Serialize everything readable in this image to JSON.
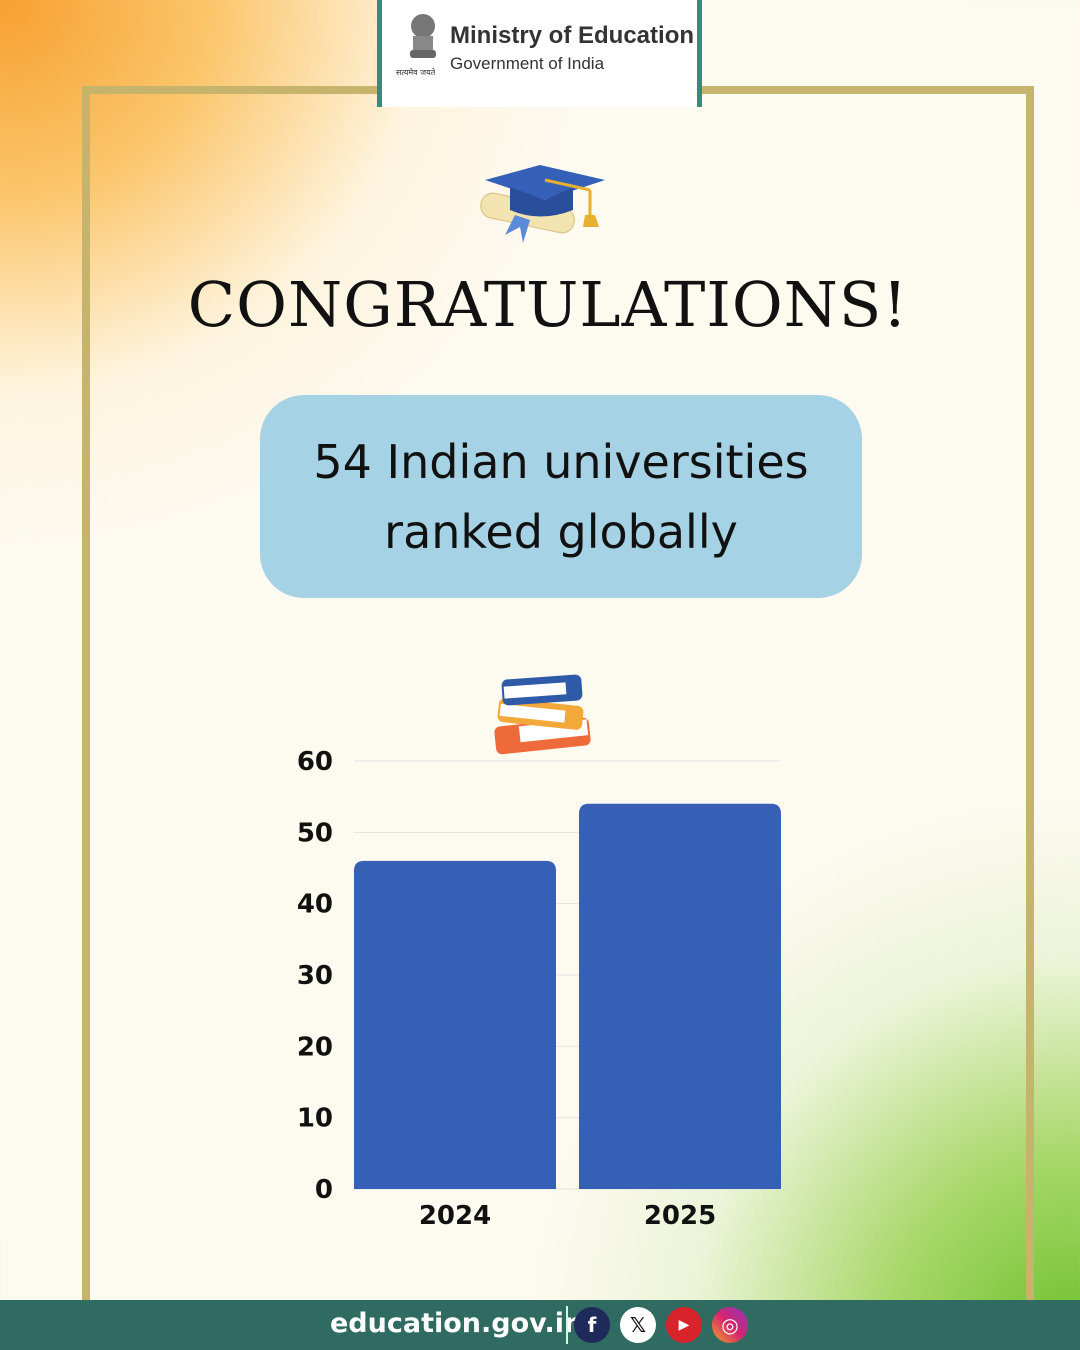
{
  "header": {
    "ministry": "Ministry of Education",
    "government": "Government of India",
    "emblem_motto": "सत्यमेव जयते"
  },
  "title": "CONGRATULATIONS!",
  "highlight": {
    "line1": "54 Indian universities",
    "line2": "ranked globally"
  },
  "icons": {
    "top": "graduation-cap-icon",
    "chart": "books-icon"
  },
  "chart_data": {
    "type": "bar",
    "categories": [
      "2024",
      "2025"
    ],
    "values": [
      46,
      54
    ],
    "ylim": [
      0,
      60
    ],
    "yticks": [
      0,
      10,
      20,
      30,
      40,
      50,
      60
    ],
    "grid": true,
    "bar_color": "#3660b5",
    "title": "",
    "xlabel": "",
    "ylabel": ""
  },
  "footer": {
    "website": "education.gov.in",
    "social": [
      "facebook",
      "x",
      "youtube",
      "instagram"
    ],
    "bar_color": "#2f6b60"
  }
}
